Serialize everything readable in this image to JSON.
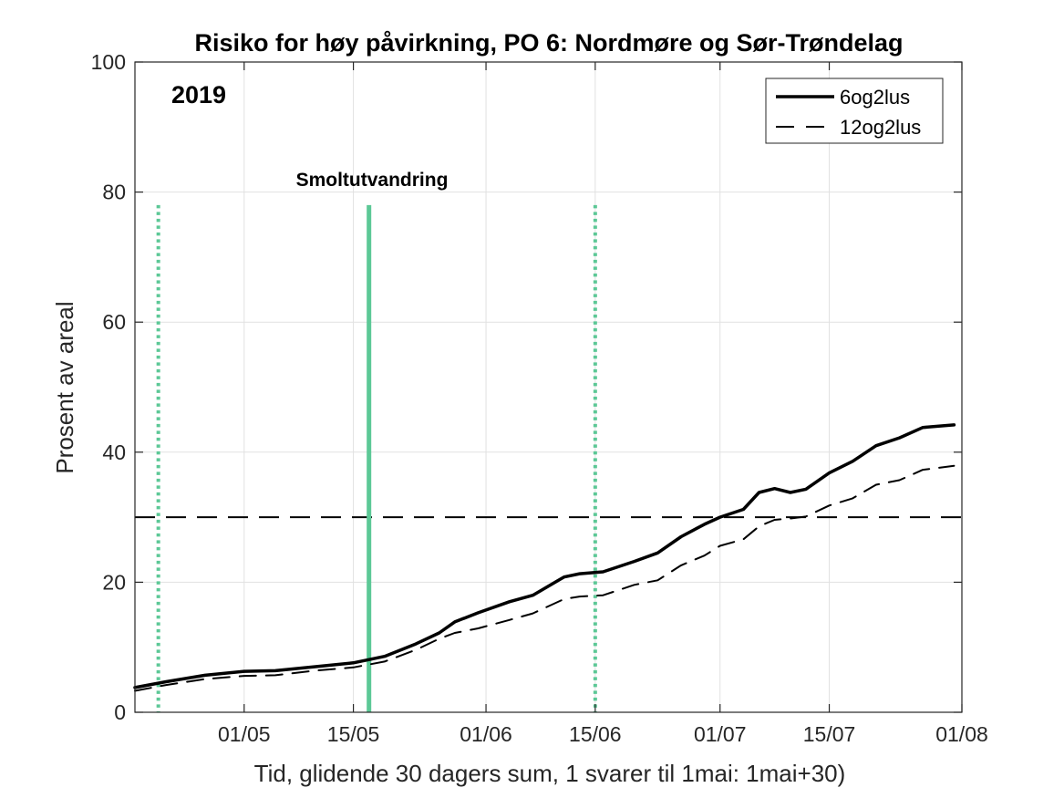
{
  "chart_data": {
    "type": "line",
    "title": "Risiko for høy påvirkning, PO 6: Nordmøre og Sør-Trøndelag",
    "year_label": "2019",
    "xlabel": "Tid, glidende 30 dagers sum, 1 svarer til 1mai: 1mai+30)",
    "ylabel": "Prosent av areal",
    "xlim": [
      "2019-04-17",
      "2019-08-01"
    ],
    "ylim": [
      0,
      100
    ],
    "x_ticks": [
      "01/05",
      "15/05",
      "01/06",
      "15/06",
      "01/07",
      "15/07",
      "01/08"
    ],
    "y_ticks": [
      "0",
      "20",
      "40",
      "60",
      "80",
      "100"
    ],
    "grid": true,
    "legend_position": "top-right",
    "threshold": 30,
    "annotation": "Smoltutvandring",
    "vertical_lines": [
      {
        "date": "2019-04-20",
        "style": "dotted",
        "color": "#5cc896"
      },
      {
        "date": "2019-05-17",
        "style": "solid",
        "color": "#5cc896"
      },
      {
        "date": "2019-06-15",
        "style": "dotted",
        "color": "#5cc896"
      }
    ],
    "series": [
      {
        "name": "6og2lus",
        "style": "solid",
        "points": [
          [
            "2019-04-17",
            3.8
          ],
          [
            "2019-04-21",
            4.7
          ],
          [
            "2019-04-26",
            5.7
          ],
          [
            "2019-05-01",
            6.3
          ],
          [
            "2019-05-05",
            6.4
          ],
          [
            "2019-05-10",
            7.0
          ],
          [
            "2019-05-15",
            7.6
          ],
          [
            "2019-05-19",
            8.6
          ],
          [
            "2019-05-23",
            10.5
          ],
          [
            "2019-05-26",
            12.2
          ],
          [
            "2019-05-28",
            13.9
          ],
          [
            "2019-05-31",
            15.3
          ],
          [
            "2019-06-04",
            17.0
          ],
          [
            "2019-06-07",
            18.0
          ],
          [
            "2019-06-11",
            20.8
          ],
          [
            "2019-06-13",
            21.3
          ],
          [
            "2019-06-16",
            21.6
          ],
          [
            "2019-06-20",
            23.2
          ],
          [
            "2019-06-23",
            24.5
          ],
          [
            "2019-06-26",
            27.0
          ],
          [
            "2019-06-29",
            28.9
          ],
          [
            "2019-07-01",
            30.0
          ],
          [
            "2019-07-04",
            31.2
          ],
          [
            "2019-07-06",
            33.8
          ],
          [
            "2019-07-08",
            34.4
          ],
          [
            "2019-07-10",
            33.8
          ],
          [
            "2019-07-12",
            34.3
          ],
          [
            "2019-07-15",
            36.8
          ],
          [
            "2019-07-18",
            38.6
          ],
          [
            "2019-07-21",
            41.0
          ],
          [
            "2019-07-24",
            42.2
          ],
          [
            "2019-07-27",
            43.8
          ],
          [
            "2019-07-31",
            44.2
          ]
        ]
      },
      {
        "name": "12og2lus",
        "style": "dashed",
        "points": [
          [
            "2019-04-17",
            3.3
          ],
          [
            "2019-04-21",
            4.2
          ],
          [
            "2019-04-26",
            5.1
          ],
          [
            "2019-05-01",
            5.6
          ],
          [
            "2019-05-05",
            5.7
          ],
          [
            "2019-05-10",
            6.4
          ],
          [
            "2019-05-15",
            6.9
          ],
          [
            "2019-05-19",
            7.8
          ],
          [
            "2019-05-23",
            9.6
          ],
          [
            "2019-05-26",
            11.3
          ],
          [
            "2019-05-28",
            12.2
          ],
          [
            "2019-05-31",
            12.9
          ],
          [
            "2019-06-04",
            14.2
          ],
          [
            "2019-06-07",
            15.2
          ],
          [
            "2019-06-11",
            17.4
          ],
          [
            "2019-06-13",
            17.8
          ],
          [
            "2019-06-16",
            18.0
          ],
          [
            "2019-06-20",
            19.6
          ],
          [
            "2019-06-23",
            20.3
          ],
          [
            "2019-06-26",
            22.6
          ],
          [
            "2019-06-29",
            24.1
          ],
          [
            "2019-07-01",
            25.6
          ],
          [
            "2019-07-04",
            26.6
          ],
          [
            "2019-07-06",
            28.6
          ],
          [
            "2019-07-08",
            29.6
          ],
          [
            "2019-07-10",
            29.8
          ],
          [
            "2019-07-12",
            30.1
          ],
          [
            "2019-07-15",
            31.8
          ],
          [
            "2019-07-18",
            32.9
          ],
          [
            "2019-07-21",
            35.0
          ],
          [
            "2019-07-24",
            35.7
          ],
          [
            "2019-07-27",
            37.3
          ],
          [
            "2019-07-31",
            37.9
          ]
        ]
      }
    ]
  }
}
